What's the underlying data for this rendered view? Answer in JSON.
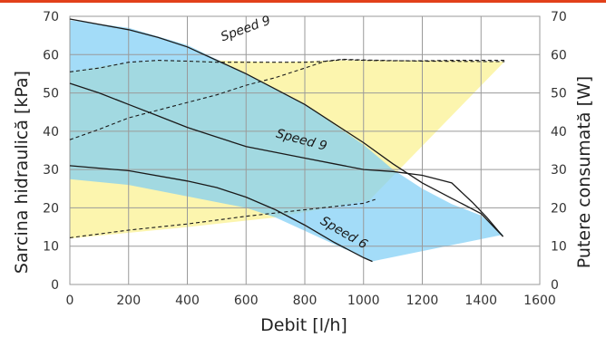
{
  "colors": {
    "accent_bar": "#e2401a",
    "head_area": "#7fcff5",
    "power_area": "#fbf3a0",
    "grid": "#9a9a9a",
    "curve": "#1a1a1a"
  },
  "chart_data": {
    "type": "area",
    "title": "",
    "xlabel": "Debit [l/h]",
    "ylabel": "Sarcina hidraulică [kPa]",
    "y2label": "Putere consumată [W]",
    "xlim": [
      0,
      1600
    ],
    "ylim": [
      0,
      70
    ],
    "y2lim": [
      0,
      70
    ],
    "x_ticks": [
      "0",
      "200",
      "400",
      "600",
      "800",
      "1000",
      "1200",
      "1400",
      "1600"
    ],
    "y_ticks": [
      "0",
      "10",
      "20",
      "30",
      "40",
      "50",
      "60",
      "70"
    ],
    "y2_ticks": [
      "0",
      "10",
      "20",
      "30",
      "40",
      "50",
      "60",
      "70"
    ],
    "grid": true,
    "head_region": {
      "upper": [
        [
          0,
          69
        ],
        [
          200,
          67
        ],
        [
          400,
          62.5
        ],
        [
          600,
          55
        ],
        [
          800,
          47
        ],
        [
          1000,
          36.5
        ],
        [
          1100,
          30
        ],
        [
          1200,
          25
        ],
        [
          1300,
          21
        ],
        [
          1400,
          18
        ],
        [
          1475,
          13
        ]
      ],
      "lower": [
        [
          1475,
          13
        ],
        [
          1040,
          6.2
        ],
        [
          1030,
          6
        ],
        [
          900,
          10.5
        ],
        [
          800,
          14
        ],
        [
          700,
          17.5
        ],
        [
          600,
          20
        ],
        [
          400,
          23
        ],
        [
          200,
          26
        ],
        [
          0,
          27.5
        ]
      ]
    },
    "power_region": {
      "upper": [
        [
          0,
          55.5
        ],
        [
          150,
          57.5
        ],
        [
          300,
          58.5
        ],
        [
          500,
          58.5
        ],
        [
          700,
          58
        ],
        [
          900,
          58.5
        ],
        [
          1100,
          58.5
        ],
        [
          1300,
          58.5
        ],
        [
          1480,
          58.2
        ]
      ],
      "lower": [
        [
          1480,
          58.2
        ],
        [
          1020,
          22
        ],
        [
          700,
          17.5
        ],
        [
          400,
          15
        ],
        [
          0,
          12
        ]
      ]
    },
    "series": [
      {
        "name": "Speed 9",
        "label_x": 520,
        "label_y": 63.5,
        "label_angle": -20,
        "x": [
          0,
          200,
          300,
          400,
          500,
          600,
          700,
          800,
          900,
          1000,
          1100,
          1200,
          1300,
          1400,
          1475
        ],
        "values": [
          69.3,
          66.5,
          64.5,
          62,
          58.5,
          55,
          51,
          47,
          42,
          37,
          31.5,
          26.5,
          22.5,
          18.5,
          12.5
        ]
      },
      {
        "name": "Speed 9",
        "label_x": 700,
        "label_y": 38.5,
        "label_angle": 15,
        "x": [
          0,
          100,
          200,
          300,
          400,
          500,
          600,
          700,
          800,
          900,
          1000,
          1100,
          1200,
          1300,
          1370,
          1420,
          1475
        ],
        "values": [
          52.5,
          50,
          47,
          44,
          41,
          38.5,
          36,
          34.5,
          33,
          31.5,
          30,
          29.5,
          28.5,
          26.5,
          21.5,
          17.5,
          12.5
        ]
      },
      {
        "name": "Speed 6",
        "label_x": 850,
        "label_y": 16,
        "label_angle": 30,
        "x": [
          0,
          200,
          400,
          500,
          600,
          700,
          800,
          900,
          1000,
          1030
        ],
        "values": [
          31,
          29.7,
          27,
          25.3,
          22.8,
          19.5,
          15.5,
          11,
          7,
          6
        ]
      }
    ],
    "power_curves": [
      {
        "x": [
          0,
          100,
          200,
          300,
          400,
          500,
          600,
          700,
          800,
          880,
          930,
          1000,
          1100,
          1200,
          1300,
          1400,
          1480
        ],
        "values": [
          55.5,
          56.5,
          58,
          58.5,
          58.3,
          58,
          58,
          58,
          58,
          58.3,
          58.7,
          58.5,
          58.4,
          58.4,
          58.5,
          58.5,
          58.5
        ]
      },
      {
        "x": [
          0,
          100,
          200,
          300,
          400,
          500,
          600,
          700,
          800,
          870,
          930,
          1000,
          1200,
          1400,
          1480
        ],
        "values": [
          37.8,
          40.5,
          43.5,
          45.5,
          47.5,
          49.5,
          52,
          54,
          56.5,
          58.3,
          58.8,
          58.6,
          58.3,
          58.2,
          58.2
        ]
      },
      {
        "x": [
          0,
          200,
          400,
          600,
          800,
          1000,
          1040
        ],
        "values": [
          12.2,
          14.2,
          15.8,
          17.8,
          19.5,
          21.2,
          22.2
        ]
      }
    ]
  }
}
